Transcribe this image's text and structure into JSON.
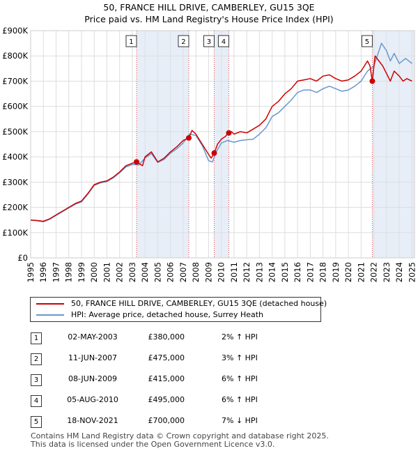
{
  "title": "50, FRANCE HILL DRIVE, CAMBERLEY, GU15 3QE",
  "subtitle": "Price paid vs. HM Land Registry's House Price Index (HPI)",
  "colors": {
    "property": "#cc0000",
    "hpi": "#6699cc",
    "shade": "#e8eef8",
    "marker_line": "#dd4444"
  },
  "legend": {
    "property": "50, FRANCE HILL DRIVE, CAMBERLEY, GU15 3QE (detached house)",
    "hpi": "HPI: Average price, detached house, Surrey Heath"
  },
  "sales": [
    {
      "num": "1",
      "date": "02-MAY-2003",
      "price": "£380,000",
      "hpi": "2% ↑ HPI"
    },
    {
      "num": "2",
      "date": "11-JUN-2007",
      "price": "£475,000",
      "hpi": "3% ↑ HPI"
    },
    {
      "num": "3",
      "date": "08-JUN-2009",
      "price": "£415,000",
      "hpi": "6% ↑ HPI"
    },
    {
      "num": "4",
      "date": "05-AUG-2010",
      "price": "£495,000",
      "hpi": "6% ↑ HPI"
    },
    {
      "num": "5",
      "date": "18-NOV-2021",
      "price": "£700,000",
      "hpi": "7% ↓ HPI"
    }
  ],
  "footer": {
    "line1": "Contains HM Land Registry data © Crown copyright and database right 2025.",
    "line2": "This data is licensed under the Open Government Licence v3.0."
  },
  "chart_data": {
    "type": "line",
    "title": "50, FRANCE HILL DRIVE, CAMBERLEY, GU15 3QE",
    "subtitle": "Price paid vs. HM Land Registry's House Price Index (HPI)",
    "xlabel": "",
    "ylabel": "",
    "xlim": [
      1995,
      2025.2
    ],
    "ylim": [
      0,
      900000
    ],
    "x_ticks": [
      1995,
      1996,
      1997,
      1998,
      1999,
      2000,
      2001,
      2002,
      2003,
      2004,
      2005,
      2006,
      2007,
      2008,
      2009,
      2010,
      2011,
      2012,
      2013,
      2014,
      2015,
      2016,
      2017,
      2018,
      2019,
      2020,
      2021,
      2022,
      2023,
      2024,
      2025
    ],
    "y_ticks": [
      0,
      100000,
      200000,
      300000,
      400000,
      500000,
      600000,
      700000,
      800000,
      900000
    ],
    "y_tick_labels": [
      "£0",
      "£100K",
      "£200K",
      "£300K",
      "£400K",
      "£500K",
      "£600K",
      "£700K",
      "£800K",
      "£900K"
    ],
    "grid": true,
    "legend_position": "below",
    "sale_points": [
      {
        "label": "1",
        "x": 2003.33,
        "y": 380000
      },
      {
        "label": "2",
        "x": 2007.44,
        "y": 475000
      },
      {
        "label": "3",
        "x": 2009.44,
        "y": 415000
      },
      {
        "label": "4",
        "x": 2010.59,
        "y": 495000
      },
      {
        "label": "5",
        "x": 2021.88,
        "y": 700000
      }
    ],
    "shaded_ranges": [
      [
        2003.33,
        2007.44
      ],
      [
        2009.44,
        2010.59
      ],
      [
        2021.88,
        2025.2
      ]
    ],
    "series": [
      {
        "name": "50, FRANCE HILL DRIVE, CAMBERLEY, GU15 3QE (detached house)",
        "x": [
          1995,
          1995.5,
          1996,
          1996.5,
          1997,
          1997.5,
          1998,
          1998.5,
          1999,
          1999.5,
          2000,
          2000.5,
          2001,
          2001.5,
          2002,
          2002.5,
          2003,
          2003.33,
          2003.8,
          2004,
          2004.5,
          2005,
          2005.5,
          2006,
          2006.5,
          2007,
          2007.44,
          2007.7,
          2008,
          2008.5,
          2009,
          2009.2,
          2009.44,
          2009.7,
          2010,
          2010.3,
          2010.59,
          2010.8,
          2011,
          2011.5,
          2012,
          2012.5,
          2013,
          2013.5,
          2014,
          2014.5,
          2015,
          2015.5,
          2016,
          2016.5,
          2017,
          2017.5,
          2018,
          2018.5,
          2019,
          2019.5,
          2020,
          2020.5,
          2021,
          2021.5,
          2021.7,
          2021.88,
          2022.1,
          2022.4,
          2022.7,
          2023,
          2023.3,
          2023.6,
          2024,
          2024.3,
          2024.6,
          2025
        ],
        "values": [
          150000,
          148000,
          145000,
          155000,
          170000,
          185000,
          200000,
          215000,
          225000,
          255000,
          290000,
          300000,
          305000,
          320000,
          340000,
          365000,
          375000,
          380000,
          365000,
          400000,
          420000,
          380000,
          395000,
          420000,
          440000,
          465000,
          475000,
          505000,
          490000,
          450000,
          410000,
          395000,
          415000,
          450000,
          470000,
          480000,
          495000,
          500000,
          490000,
          500000,
          495000,
          510000,
          525000,
          550000,
          600000,
          620000,
          650000,
          670000,
          700000,
          705000,
          710000,
          700000,
          720000,
          725000,
          710000,
          700000,
          705000,
          720000,
          740000,
          780000,
          760000,
          700000,
          800000,
          780000,
          760000,
          730000,
          700000,
          740000,
          720000,
          700000,
          710000,
          700000
        ]
      },
      {
        "name": "HPI: Average price, detached house, Surrey Heath",
        "x": [
          1995,
          1995.5,
          1996,
          1996.5,
          1997,
          1997.5,
          1998,
          1998.5,
          1999,
          1999.5,
          2000,
          2000.5,
          2001,
          2001.5,
          2002,
          2002.5,
          2003,
          2003.5,
          2004,
          2004.5,
          2005,
          2005.5,
          2006,
          2006.5,
          2007,
          2007.5,
          2008,
          2008.5,
          2009,
          2009.3,
          2009.6,
          2010,
          2010.5,
          2011,
          2011.5,
          2012,
          2012.5,
          2013,
          2013.5,
          2014,
          2014.5,
          2015,
          2015.5,
          2016,
          2016.5,
          2017,
          2017.5,
          2018,
          2018.5,
          2019,
          2019.5,
          2020,
          2020.5,
          2021,
          2021.5,
          2022,
          2022.3,
          2022.6,
          2023,
          2023.3,
          2023.6,
          2024,
          2024.5,
          2025
        ],
        "values": [
          150000,
          147000,
          143000,
          153000,
          168000,
          183000,
          198000,
          212000,
          222000,
          252000,
          287000,
          297000,
          302000,
          317000,
          337000,
          360000,
          370000,
          368000,
          395000,
          413000,
          378000,
          390000,
          415000,
          432000,
          455000,
          490000,
          485000,
          445000,
          385000,
          380000,
          420000,
          455000,
          465000,
          458000,
          465000,
          468000,
          470000,
          490000,
          515000,
          560000,
          575000,
          600000,
          625000,
          655000,
          665000,
          665000,
          655000,
          670000,
          680000,
          670000,
          660000,
          665000,
          680000,
          700000,
          740000,
          760000,
          805000,
          850000,
          820000,
          780000,
          810000,
          770000,
          790000,
          770000
        ]
      }
    ]
  }
}
